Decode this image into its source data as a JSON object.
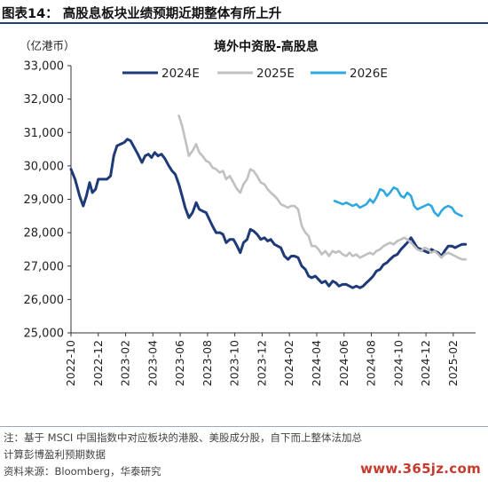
{
  "figure": {
    "title": "图表14：  高股息板块业绩预期近期整体有所上升",
    "notes": [
      "注：基于 MSCI 中国指数中对应板块的港股、美股成分股，自下而上整体法加总",
      "计算彭博盈利预期数据",
      "资料来源：Bloomberg，华泰研究"
    ],
    "watermark": "www.365jz.com"
  },
  "chart_data": {
    "type": "line",
    "title": "境外中资股-高股息",
    "unit_label": "（亿港币）",
    "ylim": [
      25000,
      33000
    ],
    "y_ticks": [
      25000,
      26000,
      27000,
      28000,
      29000,
      30000,
      31000,
      32000,
      33000
    ],
    "y_tick_labels": [
      "25,000",
      "26,000",
      "27,000",
      "28,000",
      "29,000",
      "30,000",
      "31,000",
      "32,000",
      "33,000"
    ],
    "x_tick_labels": [
      "2022-10",
      "2022-12",
      "2023-02",
      "2023-04",
      "2023-06",
      "2023-08",
      "2023-10",
      "2023-12",
      "2024-02",
      "2024-04",
      "2024-06",
      "2024-08",
      "2024-10",
      "2024-12",
      "2025-02"
    ],
    "grid": false,
    "legend": "top",
    "series": [
      {
        "name": "2024E",
        "color": "#1f3a78",
        "points": [
          [
            "2022-10-01",
            29900
          ],
          [
            "2022-10-10",
            29600
          ],
          [
            "2022-10-20",
            29100
          ],
          [
            "2022-10-28",
            28800
          ],
          [
            "2022-11-05",
            29100
          ],
          [
            "2022-11-12",
            29500
          ],
          [
            "2022-11-18",
            29200
          ],
          [
            "2022-11-25",
            29300
          ],
          [
            "2022-12-01",
            29600
          ],
          [
            "2022-12-10",
            29600
          ],
          [
            "2022-12-20",
            29600
          ],
          [
            "2022-12-28",
            29700
          ],
          [
            "2023-01-05",
            30300
          ],
          [
            "2023-01-12",
            30600
          ],
          [
            "2023-01-20",
            30650
          ],
          [
            "2023-01-28",
            30700
          ],
          [
            "2023-02-05",
            30800
          ],
          [
            "2023-02-12",
            30750
          ],
          [
            "2023-02-20",
            30550
          ],
          [
            "2023-02-28",
            30350
          ],
          [
            "2023-03-07",
            30100
          ],
          [
            "2023-03-14",
            30300
          ],
          [
            "2023-03-21",
            30350
          ],
          [
            "2023-03-28",
            30250
          ],
          [
            "2023-04-05",
            30400
          ],
          [
            "2023-04-12",
            30300
          ],
          [
            "2023-04-20",
            30350
          ],
          [
            "2023-04-28",
            30200
          ],
          [
            "2023-05-06",
            30000
          ],
          [
            "2023-05-13",
            29850
          ],
          [
            "2023-05-20",
            29750
          ],
          [
            "2023-05-28",
            29450
          ],
          [
            "2023-06-05",
            29100
          ],
          [
            "2023-06-12",
            28750
          ],
          [
            "2023-06-20",
            28450
          ],
          [
            "2023-06-28",
            28600
          ],
          [
            "2023-07-06",
            28900
          ],
          [
            "2023-07-13",
            28700
          ],
          [
            "2023-07-20",
            28650
          ],
          [
            "2023-07-28",
            28600
          ],
          [
            "2023-08-05",
            28400
          ],
          [
            "2023-08-12",
            28200
          ],
          [
            "2023-08-20",
            28000
          ],
          [
            "2023-08-28",
            28000
          ],
          [
            "2023-09-05",
            27950
          ],
          [
            "2023-09-12",
            27700
          ],
          [
            "2023-09-20",
            27800
          ],
          [
            "2023-09-28",
            27800
          ],
          [
            "2023-10-06",
            27600
          ],
          [
            "2023-10-13",
            27400
          ],
          [
            "2023-10-20",
            27700
          ],
          [
            "2023-10-28",
            27800
          ],
          [
            "2023-11-05",
            28100
          ],
          [
            "2023-11-12",
            28050
          ],
          [
            "2023-11-20",
            27950
          ],
          [
            "2023-11-28",
            27800
          ],
          [
            "2023-12-06",
            27850
          ],
          [
            "2023-12-13",
            27750
          ],
          [
            "2023-12-20",
            27800
          ],
          [
            "2023-12-28",
            27650
          ],
          [
            "2024-01-05",
            27600
          ],
          [
            "2024-01-12",
            27550
          ],
          [
            "2024-01-20",
            27300
          ],
          [
            "2024-01-28",
            27200
          ],
          [
            "2024-02-05",
            27300
          ],
          [
            "2024-02-12",
            27300
          ],
          [
            "2024-02-20",
            27250
          ],
          [
            "2024-02-28",
            27000
          ],
          [
            "2024-03-06",
            26900
          ],
          [
            "2024-03-13",
            26700
          ],
          [
            "2024-03-20",
            26650
          ],
          [
            "2024-03-28",
            26700
          ],
          [
            "2024-04-05",
            26600
          ],
          [
            "2024-04-12",
            26500
          ],
          [
            "2024-04-20",
            26550
          ],
          [
            "2024-04-28",
            26400
          ],
          [
            "2024-05-06",
            26550
          ],
          [
            "2024-05-13",
            26500
          ],
          [
            "2024-05-20",
            26400
          ],
          [
            "2024-05-28",
            26450
          ],
          [
            "2024-06-06",
            26450
          ],
          [
            "2024-06-13",
            26400
          ],
          [
            "2024-06-20",
            26350
          ],
          [
            "2024-06-28",
            26400
          ],
          [
            "2024-07-06",
            26350
          ],
          [
            "2024-07-13",
            26400
          ],
          [
            "2024-07-20",
            26500
          ],
          [
            "2024-07-28",
            26600
          ],
          [
            "2024-08-05",
            26700
          ],
          [
            "2024-08-12",
            26850
          ],
          [
            "2024-08-20",
            26900
          ],
          [
            "2024-08-28",
            27050
          ],
          [
            "2024-09-05",
            27100
          ],
          [
            "2024-09-12",
            27200
          ],
          [
            "2024-09-20",
            27300
          ],
          [
            "2024-09-28",
            27350
          ],
          [
            "2024-10-06",
            27500
          ],
          [
            "2024-10-13",
            27600
          ],
          [
            "2024-10-20",
            27700
          ],
          [
            "2024-10-28",
            27850
          ],
          [
            "2024-11-05",
            27700
          ],
          [
            "2024-11-12",
            27550
          ],
          [
            "2024-11-20",
            27500
          ],
          [
            "2024-11-28",
            27450
          ],
          [
            "2024-12-06",
            27400
          ],
          [
            "2024-12-13",
            27500
          ],
          [
            "2024-12-20",
            27450
          ],
          [
            "2024-12-28",
            27400
          ],
          [
            "2025-01-05",
            27300
          ],
          [
            "2025-01-12",
            27450
          ],
          [
            "2025-01-20",
            27600
          ],
          [
            "2025-01-28",
            27600
          ],
          [
            "2025-02-05",
            27550
          ],
          [
            "2025-02-12",
            27600
          ],
          [
            "2025-02-20",
            27650
          ],
          [
            "2025-02-28",
            27650
          ]
        ]
      },
      {
        "name": "2025E",
        "color": "#c0c0c0",
        "points": [
          [
            "2023-05-28",
            31500
          ],
          [
            "2023-06-05",
            31200
          ],
          [
            "2023-06-12",
            30800
          ],
          [
            "2023-06-20",
            30300
          ],
          [
            "2023-06-28",
            30450
          ],
          [
            "2023-07-06",
            30650
          ],
          [
            "2023-07-13",
            30400
          ],
          [
            "2023-07-20",
            30300
          ],
          [
            "2023-07-28",
            30150
          ],
          [
            "2023-08-05",
            30100
          ],
          [
            "2023-08-12",
            29950
          ],
          [
            "2023-08-20",
            29900
          ],
          [
            "2023-08-28",
            29800
          ],
          [
            "2023-09-05",
            29850
          ],
          [
            "2023-09-12",
            29600
          ],
          [
            "2023-09-20",
            29700
          ],
          [
            "2023-09-28",
            29500
          ],
          [
            "2023-10-06",
            29300
          ],
          [
            "2023-10-13",
            29200
          ],
          [
            "2023-10-20",
            29450
          ],
          [
            "2023-10-28",
            29600
          ],
          [
            "2023-11-05",
            29900
          ],
          [
            "2023-11-12",
            29850
          ],
          [
            "2023-11-20",
            29700
          ],
          [
            "2023-11-28",
            29500
          ],
          [
            "2023-12-06",
            29450
          ],
          [
            "2023-12-13",
            29300
          ],
          [
            "2023-12-20",
            29200
          ],
          [
            "2023-12-28",
            29100
          ],
          [
            "2024-01-05",
            29000
          ],
          [
            "2024-01-12",
            28850
          ],
          [
            "2024-01-20",
            28800
          ],
          [
            "2024-01-28",
            28750
          ],
          [
            "2024-02-05",
            28800
          ],
          [
            "2024-02-12",
            28800
          ],
          [
            "2024-02-20",
            28700
          ],
          [
            "2024-02-28",
            28200
          ],
          [
            "2024-03-06",
            28000
          ],
          [
            "2024-03-13",
            27900
          ],
          [
            "2024-03-20",
            27600
          ],
          [
            "2024-03-28",
            27600
          ],
          [
            "2024-04-05",
            27500
          ],
          [
            "2024-04-12",
            27350
          ],
          [
            "2024-04-20",
            27450
          ],
          [
            "2024-04-28",
            27300
          ],
          [
            "2024-05-06",
            27450
          ],
          [
            "2024-05-13",
            27400
          ],
          [
            "2024-05-20",
            27450
          ],
          [
            "2024-05-28",
            27350
          ],
          [
            "2024-06-06",
            27300
          ],
          [
            "2024-06-13",
            27400
          ],
          [
            "2024-06-20",
            27300
          ],
          [
            "2024-06-28",
            27350
          ],
          [
            "2024-07-06",
            27250
          ],
          [
            "2024-07-13",
            27300
          ],
          [
            "2024-07-20",
            27350
          ],
          [
            "2024-07-28",
            27400
          ],
          [
            "2024-08-05",
            27350
          ],
          [
            "2024-08-12",
            27450
          ],
          [
            "2024-08-20",
            27500
          ],
          [
            "2024-08-28",
            27600
          ],
          [
            "2024-09-05",
            27650
          ],
          [
            "2024-09-12",
            27700
          ],
          [
            "2024-09-20",
            27650
          ],
          [
            "2024-09-28",
            27750
          ],
          [
            "2024-10-06",
            27800
          ],
          [
            "2024-10-13",
            27850
          ],
          [
            "2024-10-20",
            27800
          ],
          [
            "2024-10-28",
            27700
          ],
          [
            "2024-11-05",
            27600
          ],
          [
            "2024-11-12",
            27500
          ],
          [
            "2024-11-20",
            27450
          ],
          [
            "2024-11-28",
            27550
          ],
          [
            "2024-12-06",
            27500
          ],
          [
            "2024-12-13",
            27400
          ],
          [
            "2024-12-20",
            27450
          ],
          [
            "2024-12-28",
            27350
          ],
          [
            "2025-01-05",
            27250
          ],
          [
            "2025-01-12",
            27350
          ],
          [
            "2025-01-20",
            27400
          ],
          [
            "2025-01-28",
            27350
          ],
          [
            "2025-02-05",
            27300
          ],
          [
            "2025-02-12",
            27250
          ],
          [
            "2025-02-20",
            27200
          ],
          [
            "2025-02-28",
            27200
          ]
        ]
      },
      {
        "name": "2026E",
        "color": "#2fa8e0",
        "points": [
          [
            "2024-05-10",
            28950
          ],
          [
            "2024-05-20",
            28900
          ],
          [
            "2024-05-28",
            28850
          ],
          [
            "2024-06-06",
            28900
          ],
          [
            "2024-06-13",
            28850
          ],
          [
            "2024-06-20",
            28800
          ],
          [
            "2024-06-28",
            28850
          ],
          [
            "2024-07-06",
            28750
          ],
          [
            "2024-07-13",
            28800
          ],
          [
            "2024-07-20",
            28850
          ],
          [
            "2024-07-28",
            29000
          ],
          [
            "2024-08-05",
            28900
          ],
          [
            "2024-08-12",
            29050
          ],
          [
            "2024-08-20",
            29300
          ],
          [
            "2024-08-28",
            29250
          ],
          [
            "2024-09-05",
            29100
          ],
          [
            "2024-09-12",
            29200
          ],
          [
            "2024-09-20",
            29350
          ],
          [
            "2024-09-28",
            29300
          ],
          [
            "2024-10-06",
            29100
          ],
          [
            "2024-10-13",
            29050
          ],
          [
            "2024-10-20",
            29200
          ],
          [
            "2024-10-28",
            29100
          ],
          [
            "2024-11-05",
            28800
          ],
          [
            "2024-11-12",
            28700
          ],
          [
            "2024-11-20",
            28750
          ],
          [
            "2024-11-28",
            28800
          ],
          [
            "2024-12-06",
            28850
          ],
          [
            "2024-12-13",
            28800
          ],
          [
            "2024-12-20",
            28600
          ],
          [
            "2024-12-28",
            28500
          ],
          [
            "2025-01-05",
            28650
          ],
          [
            "2025-01-12",
            28750
          ],
          [
            "2025-01-20",
            28800
          ],
          [
            "2025-01-28",
            28750
          ],
          [
            "2025-02-05",
            28600
          ],
          [
            "2025-02-12",
            28550
          ],
          [
            "2025-02-20",
            28500
          ]
        ]
      }
    ]
  }
}
